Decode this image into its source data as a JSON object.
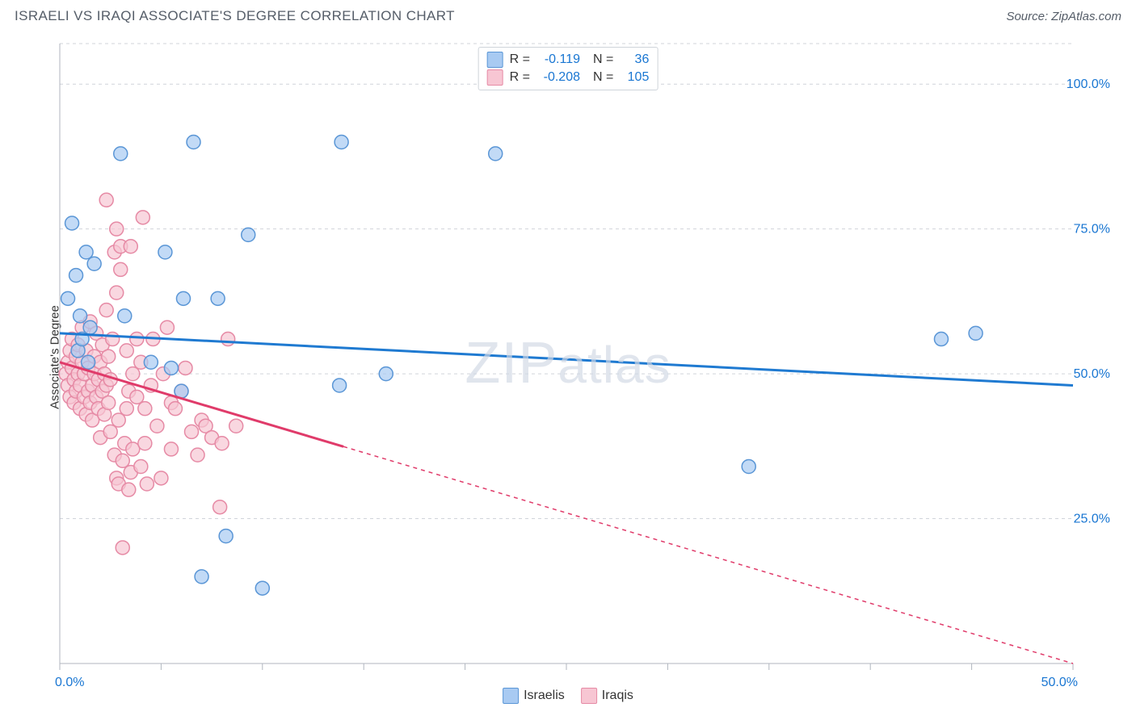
{
  "chart": {
    "type": "scatter",
    "title": "ISRAELI VS IRAQI ASSOCIATE'S DEGREE CORRELATION CHART",
    "source": "Source: ZipAtlas.com",
    "watermark": "ZIPatlas",
    "ylabel": "Associate's Degree",
    "xlim": [
      0,
      50
    ],
    "ylim": [
      0,
      107
    ],
    "xtick_positions": [
      0,
      5,
      10,
      15,
      20,
      25,
      30,
      35,
      40,
      45,
      50
    ],
    "xtick_labels_at": {
      "0": "0.0%",
      "50": "50.0%"
    },
    "ytick_positions": [
      0,
      25,
      50,
      75,
      100
    ],
    "ytick_labels": [
      "",
      "25.0%",
      "50.0%",
      "75.0%",
      "100.0%"
    ],
    "grid_y_positions": [
      0,
      25,
      50,
      75,
      100,
      107
    ],
    "grid_color": "#d0d4da",
    "grid_dash": "4 4",
    "axis_color": "#b0b6bf",
    "tick_label_color": "#1976d2",
    "tick_label_fontsize": 16,
    "background_color": "#ffffff",
    "marker_radius": 8.5,
    "marker_stroke_width": 1.5,
    "series": {
      "israelis": {
        "label": "Israelis",
        "color_fill": "#a8caf2",
        "color_stroke": "#5a96d6",
        "trend_color": "#1f7ad1",
        "trend_width": 3,
        "trend_y1": 57,
        "trend_y2": 48,
        "trend_x2_dashed_from": null,
        "R": "-0.119",
        "N": "36",
        "points": [
          [
            0.4,
            63
          ],
          [
            0.6,
            76
          ],
          [
            0.8,
            67
          ],
          [
            0.9,
            54
          ],
          [
            1.0,
            60
          ],
          [
            1.1,
            56
          ],
          [
            1.3,
            71
          ],
          [
            1.4,
            52
          ],
          [
            1.5,
            58
          ],
          [
            1.7,
            69
          ],
          [
            3.0,
            88
          ],
          [
            3.2,
            60
          ],
          [
            4.5,
            52
          ],
          [
            5.2,
            71
          ],
          [
            5.5,
            51
          ],
          [
            6.0,
            47
          ],
          [
            6.1,
            63
          ],
          [
            6.6,
            90
          ],
          [
            7.0,
            15
          ],
          [
            7.8,
            63
          ],
          [
            8.2,
            22
          ],
          [
            9.3,
            74
          ],
          [
            10.0,
            13
          ],
          [
            13.8,
            48
          ],
          [
            13.9,
            90
          ],
          [
            16.1,
            50
          ],
          [
            21.5,
            88
          ],
          [
            34.0,
            34
          ],
          [
            43.5,
            56
          ],
          [
            45.2,
            57
          ]
        ]
      },
      "iraqis": {
        "label": "Iraqis",
        "color_fill": "#f7c6d3",
        "color_stroke": "#e68aa5",
        "trend_color": "#e03b6a",
        "trend_width": 3,
        "trend_y1": 52,
        "trend_y2": 0,
        "trend_x2_dashed_from": 14,
        "R": "-0.208",
        "N": "105",
        "points": [
          [
            0.3,
            50
          ],
          [
            0.4,
            52
          ],
          [
            0.4,
            48
          ],
          [
            0.5,
            54
          ],
          [
            0.5,
            46
          ],
          [
            0.6,
            51
          ],
          [
            0.6,
            56
          ],
          [
            0.7,
            49
          ],
          [
            0.7,
            45
          ],
          [
            0.8,
            53
          ],
          [
            0.8,
            47
          ],
          [
            0.9,
            50
          ],
          [
            0.9,
            55
          ],
          [
            1.0,
            48
          ],
          [
            1.0,
            44
          ],
          [
            1.1,
            52
          ],
          [
            1.1,
            58
          ],
          [
            1.2,
            46
          ],
          [
            1.2,
            50
          ],
          [
            1.3,
            43
          ],
          [
            1.3,
            54
          ],
          [
            1.4,
            47
          ],
          [
            1.4,
            51
          ],
          [
            1.5,
            45
          ],
          [
            1.5,
            59
          ],
          [
            1.6,
            48
          ],
          [
            1.6,
            42
          ],
          [
            1.7,
            53
          ],
          [
            1.7,
            50
          ],
          [
            1.8,
            46
          ],
          [
            1.8,
            57
          ],
          [
            1.9,
            49
          ],
          [
            1.9,
            44
          ],
          [
            2.0,
            52
          ],
          [
            2.0,
            39
          ],
          [
            2.1,
            55
          ],
          [
            2.1,
            47
          ],
          [
            2.2,
            50
          ],
          [
            2.2,
            43
          ],
          [
            2.3,
            48
          ],
          [
            2.3,
            61
          ],
          [
            2.3,
            80
          ],
          [
            2.4,
            45
          ],
          [
            2.4,
            53
          ],
          [
            2.5,
            49
          ],
          [
            2.5,
            40
          ],
          [
            2.6,
            56
          ],
          [
            2.7,
            36
          ],
          [
            2.7,
            71
          ],
          [
            2.8,
            32
          ],
          [
            2.8,
            64
          ],
          [
            2.8,
            75
          ],
          [
            2.9,
            42
          ],
          [
            2.9,
            31
          ],
          [
            3.0,
            72
          ],
          [
            3.0,
            68
          ],
          [
            3.1,
            35
          ],
          [
            3.1,
            20
          ],
          [
            3.2,
            38
          ],
          [
            3.3,
            54
          ],
          [
            3.3,
            44
          ],
          [
            3.4,
            30
          ],
          [
            3.4,
            47
          ],
          [
            3.5,
            33
          ],
          [
            3.5,
            72
          ],
          [
            3.6,
            37
          ],
          [
            3.6,
            50
          ],
          [
            3.8,
            46
          ],
          [
            3.8,
            56
          ],
          [
            4.0,
            52
          ],
          [
            4.0,
            34
          ],
          [
            4.1,
            77
          ],
          [
            4.2,
            38
          ],
          [
            4.2,
            44
          ],
          [
            4.3,
            31
          ],
          [
            4.5,
            48
          ],
          [
            4.6,
            56
          ],
          [
            4.8,
            41
          ],
          [
            5.0,
            32
          ],
          [
            5.1,
            50
          ],
          [
            5.3,
            58
          ],
          [
            5.5,
            45
          ],
          [
            5.5,
            37
          ],
          [
            5.7,
            44
          ],
          [
            6.0,
            47
          ],
          [
            6.2,
            51
          ],
          [
            6.5,
            40
          ],
          [
            6.8,
            36
          ],
          [
            7.0,
            42
          ],
          [
            7.2,
            41
          ],
          [
            7.5,
            39
          ],
          [
            7.9,
            27
          ],
          [
            8.0,
            38
          ],
          [
            8.3,
            56
          ],
          [
            8.7,
            41
          ]
        ]
      }
    },
    "legend_swatch_israelis_fill": "#a8caf2",
    "legend_swatch_israelis_stroke": "#5a96d6",
    "legend_swatch_iraqis_fill": "#f7c6d3",
    "legend_swatch_iraqis_stroke": "#e68aa5"
  },
  "labels": {
    "R": "R =",
    "N": "N ="
  }
}
